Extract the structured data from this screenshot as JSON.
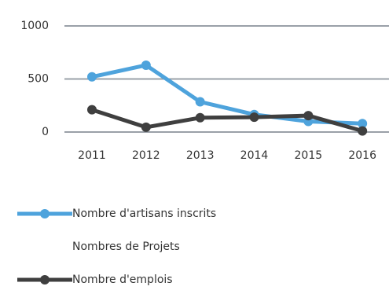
{
  "chart_data": {
    "type": "line",
    "categories": [
      "2011",
      "2012",
      "2013",
      "2014",
      "2015",
      "2016"
    ],
    "series": [
      {
        "name": "Nombre d'artisans inscrits",
        "color": "#4ea3dc",
        "values": [
          520,
          630,
          285,
          165,
          100,
          80
        ]
      },
      {
        "name": "Nombres de Projets",
        "color": "#ffffff",
        "values": [
          null,
          null,
          null,
          null,
          null,
          null
        ]
      },
      {
        "name": "Nombre d'emplois",
        "color": "#3f3f3f",
        "values": [
          210,
          45,
          135,
          140,
          155,
          10
        ]
      }
    ],
    "ylim": [
      0,
      1000
    ],
    "yticks": [
      0,
      500,
      1000
    ],
    "grid": true,
    "legend": "bottom"
  }
}
